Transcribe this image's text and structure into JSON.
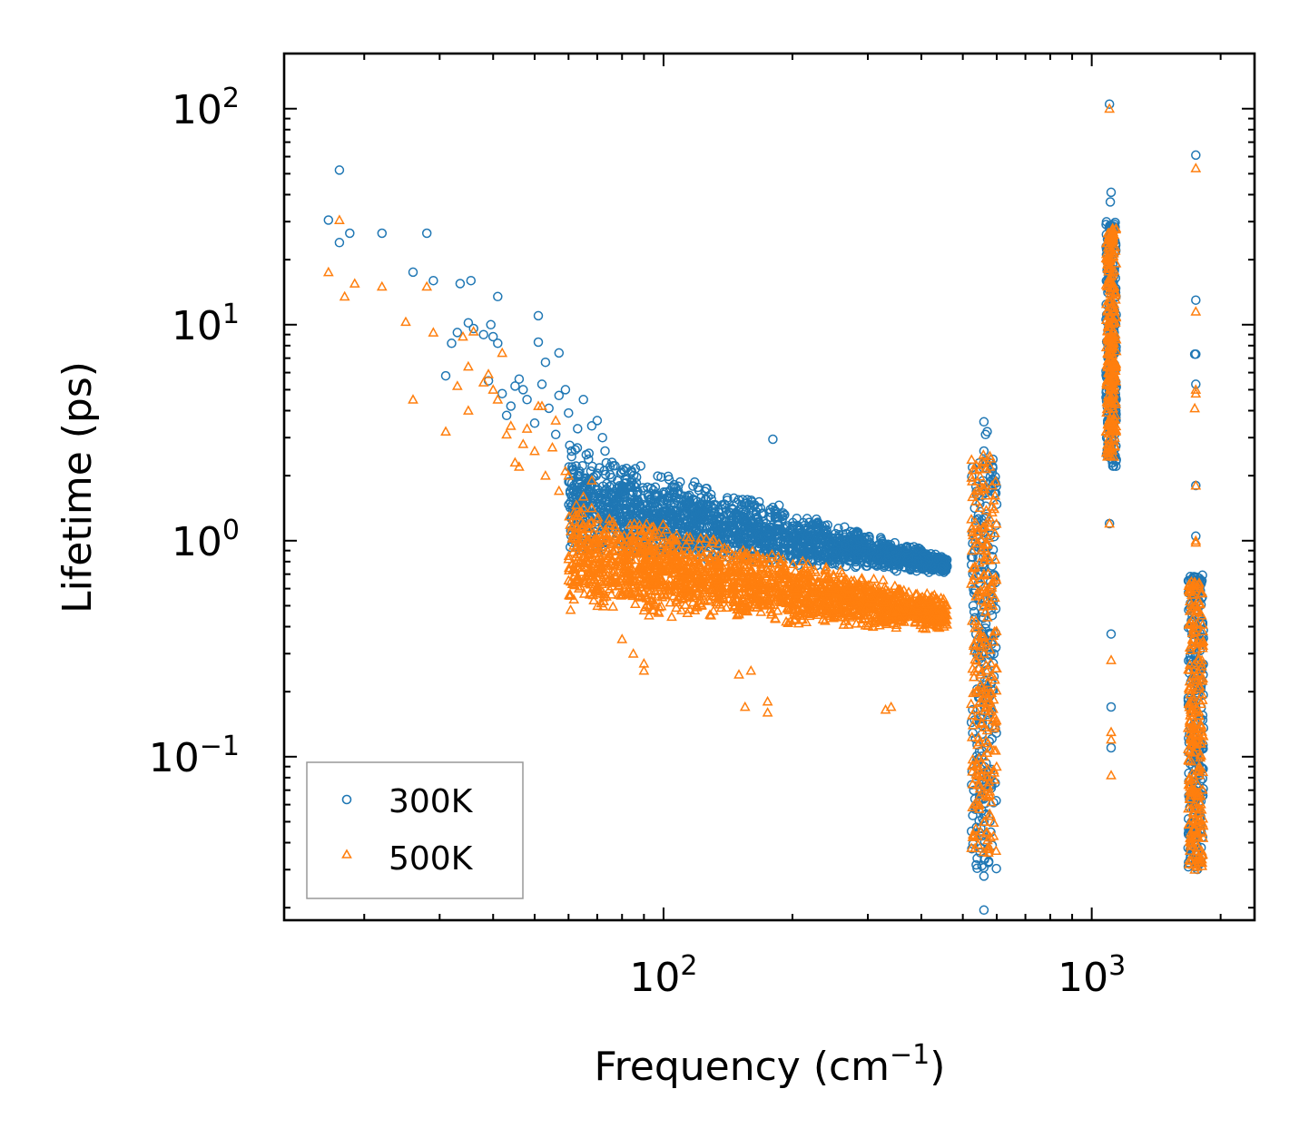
{
  "chart_data": {
    "type": "scatter",
    "xscale": "log",
    "yscale": "log",
    "xlim": [
      13,
      2400
    ],
    "ylim": [
      0.0175,
      180
    ],
    "xlabel_main": "Frequency (cm",
    "xlabel_sup": "−1",
    "xlabel_close": ")",
    "ylabel": "Lifetime (ps)",
    "x_ticks": [
      {
        "value": 100,
        "base": "10",
        "exp": "2"
      },
      {
        "value": 1000,
        "base": "10",
        "exp": "3"
      }
    ],
    "y_ticks": [
      {
        "value": 0.1,
        "base": "10",
        "exp": "−1"
      },
      {
        "value": 1,
        "base": "10",
        "exp": "0"
      },
      {
        "value": 10,
        "base": "10",
        "exp": "1"
      },
      {
        "value": 100,
        "base": "10",
        "exp": "2"
      }
    ],
    "legend": {
      "location": "lower-left",
      "entries": [
        "300K",
        "500K"
      ]
    },
    "series": [
      {
        "name": "300K",
        "marker": "circle",
        "color": "#1f77b4",
        "points": [
          [
            16.5,
            30.5
          ],
          [
            17.5,
            52
          ],
          [
            17.5,
            24
          ],
          [
            18.5,
            26.5
          ],
          [
            22,
            26.5
          ],
          [
            26,
            17.5
          ],
          [
            28,
            26.5
          ],
          [
            29,
            16
          ],
          [
            31,
            5.8
          ],
          [
            32,
            8.2
          ],
          [
            33,
            9.2
          ],
          [
            33.5,
            15.5
          ],
          [
            35,
            10.2
          ],
          [
            35.5,
            16
          ],
          [
            36,
            9.6
          ],
          [
            38,
            9.0
          ],
          [
            39,
            5.5
          ],
          [
            39.5,
            10.0
          ],
          [
            40,
            8.8
          ],
          [
            41,
            13.5
          ],
          [
            41,
            8.2
          ],
          [
            42,
            4.8
          ],
          [
            43,
            3.8
          ],
          [
            44,
            4.2
          ],
          [
            45,
            5.2
          ],
          [
            46,
            5.6
          ],
          [
            47,
            5.0
          ],
          [
            48,
            4.5
          ],
          [
            50,
            3.5
          ],
          [
            51,
            11.0
          ],
          [
            51,
            8.3
          ],
          [
            52,
            5.3
          ],
          [
            53,
            6.7
          ],
          [
            54,
            4.1
          ],
          [
            56,
            3.1
          ],
          [
            57,
            4.7
          ],
          [
            57,
            7.4
          ],
          [
            59,
            5.0
          ],
          [
            60,
            3.9
          ],
          [
            61,
            2.6
          ],
          [
            63,
            3.3
          ],
          [
            65,
            4.5
          ],
          [
            66,
            2.5
          ],
          [
            68,
            3.4
          ],
          [
            70,
            3.6
          ],
          [
            72,
            3.0
          ],
          [
            73,
            2.6
          ],
          [
            75,
            2.2
          ],
          [
            180,
            2.95
          ],
          [
            560,
            3.55
          ],
          [
            565,
            3.1
          ],
          [
            570,
            3.2
          ],
          [
            560,
            2.6
          ],
          [
            560,
            1.1
          ],
          [
            560,
            0.5
          ],
          [
            560,
            0.2
          ],
          [
            560,
            0.09
          ],
          [
            560,
            0.05
          ],
          [
            560,
            0.028
          ],
          [
            560,
            0.0195
          ],
          [
            1100,
            105
          ],
          [
            1110,
            41
          ],
          [
            1105,
            37
          ],
          [
            1100,
            28
          ],
          [
            1100,
            1.2
          ],
          [
            1110,
            0.37
          ],
          [
            1110,
            0.17
          ],
          [
            1110,
            0.11
          ],
          [
            1750,
            61
          ],
          [
            1750,
            13
          ],
          [
            1740,
            7.3
          ],
          [
            1750,
            7.3
          ],
          [
            1750,
            5.3
          ],
          [
            1750,
            1.8
          ],
          [
            1750,
            1.05
          ],
          [
            1750,
            0.55
          ],
          [
            1750,
            0.3
          ],
          [
            1740,
            0.07
          ],
          [
            1750,
            0.035
          ]
        ],
        "bands": [
          {
            "x_range": [
              60,
              460
            ],
            "y_lower_start": 0.85,
            "y_lower_end": 0.7,
            "y_upper_start": 2.9,
            "y_upper_end": 0.85,
            "count": 2000
          },
          {
            "x": 560,
            "x_jitter": 0.03,
            "y_range": [
              0.03,
              2.4
            ],
            "count": 260
          },
          {
            "x": 1110,
            "x_jitter": 0.012,
            "y_range": [
              2.2,
              30
            ],
            "count": 260
          },
          {
            "x": 1750,
            "x_jitter": 0.018,
            "y_range": [
              0.03,
              0.7
            ],
            "count": 260
          }
        ]
      },
      {
        "name": "500K",
        "marker": "triangle",
        "color": "#ff7f0e",
        "points": [
          [
            16.5,
            17.5
          ],
          [
            17.5,
            30.5
          ],
          [
            18,
            13.5
          ],
          [
            19,
            15.5
          ],
          [
            22,
            15.0
          ],
          [
            25,
            10.3
          ],
          [
            26,
            4.5
          ],
          [
            28,
            15.0
          ],
          [
            29,
            9.2
          ],
          [
            31,
            3.2
          ],
          [
            33,
            5.2
          ],
          [
            34,
            8.8
          ],
          [
            35,
            4.0
          ],
          [
            35,
            6.4
          ],
          [
            36,
            9.3
          ],
          [
            38,
            5.4
          ],
          [
            39,
            5.9
          ],
          [
            40,
            5.0
          ],
          [
            41,
            4.5
          ],
          [
            42,
            7.4
          ],
          [
            43,
            3.1
          ],
          [
            44,
            3.4
          ],
          [
            45,
            2.3
          ],
          [
            46,
            2.2
          ],
          [
            47,
            2.8
          ],
          [
            48,
            3.3
          ],
          [
            50,
            2.6
          ],
          [
            51,
            4.2
          ],
          [
            52,
            4.2
          ],
          [
            53,
            2.0
          ],
          [
            55,
            2.7
          ],
          [
            56,
            3.6
          ],
          [
            57,
            1.7
          ],
          [
            59,
            2.1
          ],
          [
            60,
            2.0
          ],
          [
            62,
            1.3
          ],
          [
            63,
            0.95
          ],
          [
            65,
            1.6
          ],
          [
            66,
            0.75
          ],
          [
            68,
            1.9
          ],
          [
            80,
            0.35
          ],
          [
            85,
            0.3
          ],
          [
            90,
            0.27
          ],
          [
            90,
            0.25
          ],
          [
            150,
            0.24
          ],
          [
            155,
            0.17
          ],
          [
            160,
            0.25
          ],
          [
            175,
            0.18
          ],
          [
            175,
            0.16
          ],
          [
            330,
            0.165
          ],
          [
            340,
            0.17
          ],
          [
            560,
            2.3
          ],
          [
            565,
            1.8
          ],
          [
            560,
            0.7
          ],
          [
            560,
            0.3
          ],
          [
            560,
            0.1
          ],
          [
            560,
            0.05
          ],
          [
            1100,
            100
          ],
          [
            1100,
            11.0
          ],
          [
            1100,
            1.2
          ],
          [
            1110,
            0.28
          ],
          [
            1110,
            0.13
          ],
          [
            1110,
            0.12
          ],
          [
            1110,
            0.082
          ],
          [
            1750,
            53
          ],
          [
            1750,
            11.5
          ],
          [
            1750,
            5.0
          ],
          [
            1740,
            4.1
          ],
          [
            1750,
            4.8
          ],
          [
            1750,
            1.8
          ],
          [
            1750,
            1.0
          ],
          [
            1750,
            0.98
          ],
          [
            1740,
            0.03
          ]
        ],
        "bands": [
          {
            "x_range": [
              60,
              460
            ],
            "y_lower_start": 0.45,
            "y_lower_end": 0.38,
            "y_upper_start": 1.6,
            "y_upper_end": 0.55,
            "count": 2000
          },
          {
            "x": 560,
            "x_jitter": 0.03,
            "y_range": [
              0.035,
              2.5
            ],
            "count": 260
          },
          {
            "x": 1110,
            "x_jitter": 0.012,
            "y_range": [
              2.4,
              28
            ],
            "count": 260
          },
          {
            "x": 1750,
            "x_jitter": 0.018,
            "y_range": [
              0.03,
              0.65
            ],
            "count": 260
          }
        ]
      }
    ]
  }
}
